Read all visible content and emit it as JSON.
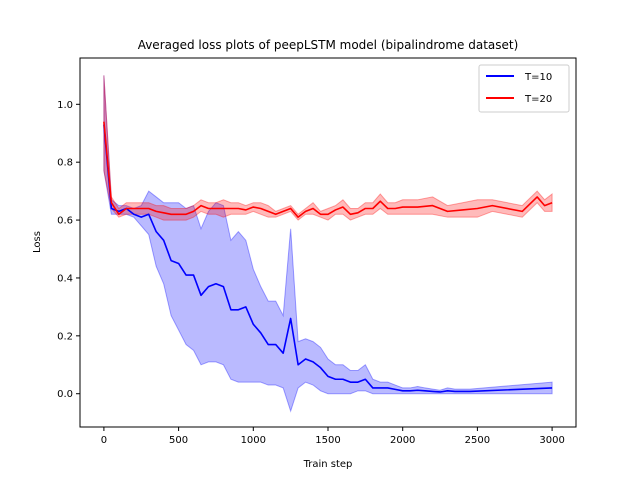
{
  "chart_data": {
    "type": "line",
    "title": "Averaged loss plots of peepLSTM model (bipalindrome dataset)",
    "xlabel": "Train step",
    "ylabel": "Loss",
    "xlim": [
      -160,
      3160
    ],
    "ylim": [
      -0.115,
      1.16
    ],
    "xticks": [
      0,
      500,
      1000,
      1500,
      2000,
      2500,
      3000
    ],
    "yticks": [
      0.0,
      0.2,
      0.4,
      0.6,
      0.8,
      1.0
    ],
    "xtick_labels": [
      "0",
      "500",
      "1000",
      "1500",
      "2000",
      "2500",
      "3000"
    ],
    "ytick_labels": [
      "0.0",
      "0.2",
      "0.4",
      "0.6",
      "0.8",
      "1.0"
    ],
    "legend_position": "top-right",
    "x": [
      0,
      50,
      100,
      150,
      200,
      250,
      300,
      350,
      400,
      450,
      500,
      550,
      600,
      650,
      700,
      750,
      800,
      850,
      900,
      950,
      1000,
      1050,
      1100,
      1150,
      1200,
      1250,
      1300,
      1350,
      1400,
      1450,
      1500,
      1550,
      1600,
      1650,
      1700,
      1750,
      1800,
      1850,
      1900,
      1950,
      2000,
      2050,
      2100,
      2150,
      2200,
      2250,
      2300,
      2350,
      2400,
      2450,
      2500,
      2550,
      2600,
      2650,
      2700,
      2750,
      2800,
      2850,
      2900,
      2950,
      3000
    ],
    "series": [
      {
        "name": "T=10",
        "color": "#0000ff",
        "band_color": "#0000ff",
        "values": [
          0.93,
          0.64,
          0.63,
          0.64,
          0.62,
          0.61,
          0.62,
          0.56,
          0.53,
          0.46,
          0.45,
          0.41,
          0.41,
          0.34,
          0.37,
          0.38,
          0.37,
          0.29,
          0.29,
          0.3,
          0.24,
          0.21,
          0.17,
          0.17,
          0.14,
          0.26,
          0.1,
          0.12,
          0.11,
          0.09,
          0.06,
          0.05,
          0.05,
          0.04,
          0.04,
          0.05,
          0.02,
          0.02,
          0.02,
          0.015,
          0.01,
          0.01,
          0.012,
          0.01,
          0.008,
          0.006,
          0.01,
          0.008,
          0.008,
          0.008,
          0.02
        ],
        "x_subset_step": 50,
        "x_values": [
          0,
          50,
          100,
          150,
          200,
          250,
          300,
          350,
          400,
          450,
          500,
          550,
          600,
          650,
          700,
          750,
          800,
          850,
          900,
          950,
          1000,
          1050,
          1100,
          1150,
          1200,
          1250,
          1300,
          1350,
          1400,
          1450,
          1500,
          1550,
          1600,
          1650,
          1700,
          1750,
          1800,
          1850,
          1900,
          1950,
          2000,
          2050,
          2100,
          2150,
          2200,
          2250,
          2300,
          2350,
          2400,
          2450,
          3000
        ],
        "band_lower": [
          0.77,
          0.62,
          0.62,
          0.62,
          0.61,
          0.58,
          0.55,
          0.44,
          0.38,
          0.27,
          0.22,
          0.17,
          0.15,
          0.1,
          0.11,
          0.11,
          0.1,
          0.05,
          0.04,
          0.04,
          0.04,
          0.04,
          0.03,
          0.03,
          0.02,
          -0.06,
          0.02,
          0.04,
          0.03,
          0.01,
          0.0,
          0.0,
          0.0,
          0.0,
          0.01,
          0.01,
          0.0,
          0.0,
          0.0,
          0.0,
          0.0,
          0.0,
          0.0,
          0.0,
          0.0,
          0.0,
          0.0,
          0.0,
          0.0,
          0.0,
          0.0
        ],
        "band_upper": [
          1.1,
          0.67,
          0.65,
          0.65,
          0.64,
          0.65,
          0.7,
          0.68,
          0.66,
          0.66,
          0.66,
          0.64,
          0.65,
          0.57,
          0.63,
          0.66,
          0.65,
          0.53,
          0.56,
          0.53,
          0.43,
          0.37,
          0.32,
          0.32,
          0.27,
          0.57,
          0.18,
          0.19,
          0.18,
          0.16,
          0.12,
          0.1,
          0.1,
          0.08,
          0.08,
          0.1,
          0.05,
          0.04,
          0.04,
          0.03,
          0.02,
          0.02,
          0.025,
          0.02,
          0.016,
          0.012,
          0.02,
          0.016,
          0.016,
          0.016,
          0.04
        ]
      },
      {
        "name": "T=20",
        "color": "#ff0000",
        "band_color": "#ff0000",
        "values": [
          0.94,
          0.66,
          0.62,
          0.64,
          0.64,
          0.64,
          0.64,
          0.63,
          0.625,
          0.62,
          0.62,
          0.62,
          0.63,
          0.65,
          0.64,
          0.64,
          0.64,
          0.64,
          0.64,
          0.635,
          0.645,
          0.64,
          0.63,
          0.62,
          0.63,
          0.64,
          0.61,
          0.63,
          0.64,
          0.62,
          0.62,
          0.635,
          0.645,
          0.62,
          0.625,
          0.64,
          0.64,
          0.665,
          0.64,
          0.64,
          0.645,
          0.645,
          0.65,
          0.63,
          0.635,
          0.64,
          0.65,
          0.63,
          0.68,
          0.65,
          0.66
        ],
        "x_values": [
          0,
          50,
          100,
          150,
          200,
          250,
          300,
          350,
          400,
          450,
          500,
          550,
          600,
          650,
          700,
          750,
          800,
          850,
          900,
          950,
          1000,
          1050,
          1100,
          1150,
          1200,
          1250,
          1300,
          1350,
          1400,
          1450,
          1500,
          1550,
          1600,
          1650,
          1700,
          1750,
          1800,
          1850,
          1900,
          1950,
          2000,
          2100,
          2200,
          2300,
          2400,
          2500,
          2600,
          2800,
          2900,
          2950,
          3000
        ],
        "band_lower": [
          0.77,
          0.64,
          0.61,
          0.62,
          0.62,
          0.62,
          0.62,
          0.61,
          0.6,
          0.6,
          0.6,
          0.6,
          0.61,
          0.63,
          0.62,
          0.62,
          0.61,
          0.62,
          0.62,
          0.62,
          0.63,
          0.62,
          0.61,
          0.61,
          0.62,
          0.63,
          0.6,
          0.62,
          0.62,
          0.61,
          0.6,
          0.62,
          0.62,
          0.6,
          0.61,
          0.62,
          0.62,
          0.64,
          0.62,
          0.62,
          0.62,
          0.62,
          0.62,
          0.61,
          0.61,
          0.61,
          0.63,
          0.61,
          0.66,
          0.63,
          0.63
        ],
        "band_upper": [
          1.1,
          0.68,
          0.64,
          0.66,
          0.66,
          0.66,
          0.66,
          0.65,
          0.65,
          0.64,
          0.64,
          0.64,
          0.65,
          0.67,
          0.66,
          0.66,
          0.67,
          0.66,
          0.66,
          0.65,
          0.66,
          0.66,
          0.65,
          0.63,
          0.64,
          0.65,
          0.62,
          0.64,
          0.66,
          0.63,
          0.64,
          0.65,
          0.67,
          0.64,
          0.64,
          0.66,
          0.66,
          0.69,
          0.66,
          0.66,
          0.67,
          0.67,
          0.68,
          0.65,
          0.66,
          0.67,
          0.67,
          0.65,
          0.7,
          0.67,
          0.69
        ]
      }
    ]
  }
}
